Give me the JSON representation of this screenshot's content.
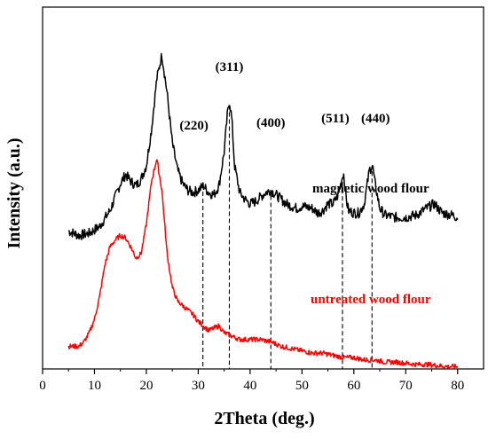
{
  "chart_data": {
    "type": "line",
    "xlabel": "2Theta (deg.)",
    "ylabel": "Intensity (a.u.)",
    "xlim": [
      0,
      85
    ],
    "xticks": [
      0,
      10,
      20,
      30,
      40,
      50,
      60,
      70,
      80
    ],
    "yticks_shown": false,
    "grid": false,
    "legend": "none",
    "series": [
      {
        "name": "magnetic wood flour",
        "color": "#000000",
        "points": [
          [
            5,
            6.1
          ],
          [
            7,
            5.9
          ],
          [
            9,
            6.0
          ],
          [
            11,
            6.3
          ],
          [
            13,
            7.0
          ],
          [
            15,
            8.2
          ],
          [
            16,
            8.6
          ],
          [
            17,
            8.3
          ],
          [
            18,
            8.1
          ],
          [
            19,
            8.4
          ],
          [
            20,
            9.0
          ],
          [
            21,
            10.6
          ],
          [
            22,
            12.8
          ],
          [
            23,
            13.9
          ],
          [
            24,
            12.2
          ],
          [
            25,
            10.0
          ],
          [
            26,
            8.8
          ],
          [
            27,
            8.2
          ],
          [
            28,
            7.9
          ],
          [
            29,
            7.8
          ],
          [
            30,
            7.9
          ],
          [
            31,
            8.1
          ],
          [
            32,
            7.8
          ],
          [
            33,
            7.7
          ],
          [
            34,
            8.1
          ],
          [
            35,
            9.6
          ],
          [
            35.6,
            11.2
          ],
          [
            36,
            11.9
          ],
          [
            36.5,
            11.0
          ],
          [
            37,
            9.0
          ],
          [
            38,
            7.8
          ],
          [
            39,
            7.5
          ],
          [
            40,
            7.3
          ],
          [
            41,
            7.4
          ],
          [
            42,
            7.6
          ],
          [
            43,
            7.8
          ],
          [
            44,
            7.9
          ],
          [
            45,
            7.7
          ],
          [
            46,
            7.5
          ],
          [
            47,
            7.3
          ],
          [
            48,
            7.2
          ],
          [
            49,
            7.1
          ],
          [
            50,
            7.2
          ],
          [
            52,
            7.1
          ],
          [
            53,
            6.9
          ],
          [
            54,
            7.0
          ],
          [
            55,
            7.3
          ],
          [
            56,
            7.3
          ],
          [
            57,
            7.7
          ],
          [
            58,
            8.7
          ],
          [
            58.6,
            7.4
          ],
          [
            59,
            7.0
          ],
          [
            60,
            6.9
          ],
          [
            61,
            6.9
          ],
          [
            62,
            7.3
          ],
          [
            63,
            8.8
          ],
          [
            63.6,
            9.0
          ],
          [
            64,
            8.3
          ],
          [
            65,
            7.1
          ],
          [
            66,
            6.8
          ],
          [
            68,
            6.7
          ],
          [
            70,
            6.7
          ],
          [
            72,
            6.8
          ],
          [
            74,
            7.1
          ],
          [
            75.5,
            7.3
          ],
          [
            77,
            6.9
          ],
          [
            79,
            6.8
          ],
          [
            80,
            6.7
          ]
        ]
      },
      {
        "name": "untreated wood flour",
        "color": "#ff0000",
        "points": [
          [
            5,
            1.0
          ],
          [
            6,
            1.0
          ],
          [
            7,
            1.0
          ],
          [
            8,
            1.2
          ],
          [
            9,
            1.6
          ],
          [
            10,
            2.2
          ],
          [
            11,
            3.2
          ],
          [
            12,
            4.6
          ],
          [
            13,
            5.4
          ],
          [
            14,
            5.7
          ],
          [
            15,
            5.9
          ],
          [
            16,
            5.8
          ],
          [
            17,
            5.4
          ],
          [
            18,
            4.9
          ],
          [
            19,
            5.1
          ],
          [
            20,
            6.4
          ],
          [
            21,
            8.3
          ],
          [
            22,
            9.3
          ],
          [
            23,
            7.9
          ],
          [
            24,
            5.1
          ],
          [
            25,
            3.6
          ],
          [
            26,
            3.0
          ],
          [
            27,
            2.8
          ],
          [
            28,
            2.6
          ],
          [
            29,
            2.4
          ],
          [
            30,
            2.1
          ],
          [
            31,
            1.9
          ],
          [
            32,
            1.7
          ],
          [
            33,
            1.8
          ],
          [
            34,
            1.9
          ],
          [
            35,
            1.6
          ],
          [
            36,
            1.5
          ],
          [
            37,
            1.4
          ],
          [
            38,
            1.3
          ],
          [
            40,
            1.3
          ],
          [
            42,
            1.3
          ],
          [
            44,
            1.2
          ],
          [
            46,
            1.0
          ],
          [
            48,
            0.9
          ],
          [
            50,
            0.8
          ],
          [
            52,
            0.7
          ],
          [
            54,
            0.7
          ],
          [
            56,
            0.6
          ],
          [
            58,
            0.5
          ],
          [
            60,
            0.5
          ],
          [
            62,
            0.4
          ],
          [
            64,
            0.4
          ],
          [
            66,
            0.3
          ],
          [
            68,
            0.3
          ],
          [
            70,
            0.25
          ],
          [
            72,
            0.2
          ],
          [
            74,
            0.2
          ],
          [
            76,
            0.15
          ],
          [
            78,
            0.1
          ],
          [
            80,
            0.1
          ]
        ]
      }
    ],
    "series_labels": [
      "magnetic wood flour",
      "untreated wood flour"
    ],
    "peak_labels": [
      {
        "label": "(220)",
        "x": 30.9
      },
      {
        "label": "(311)",
        "x": 36.0
      },
      {
        "label": "(400)",
        "x": 44.0
      },
      {
        "label": "(511)",
        "x": 57.8
      },
      {
        "label": "(440)",
        "x": 63.5
      }
    ]
  }
}
